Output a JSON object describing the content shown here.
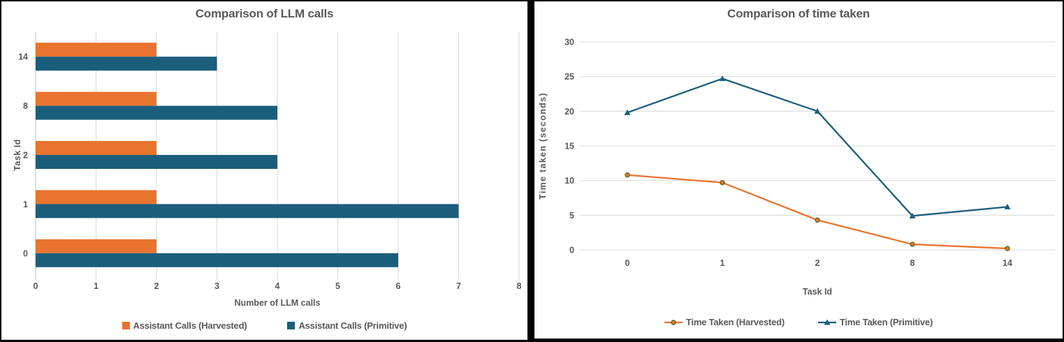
{
  "left_panel": {
    "title": "Comparison of LLM calls"
  },
  "right_panel": {
    "title": "Comparison of time taken"
  },
  "colors": {
    "harvested_orange": "#E8742F",
    "primitive_blue": "#1B5E7C",
    "text_gray": "#595959",
    "gridline_gray": "#D9D9D9",
    "axis_gray": "#BFBFBF",
    "marker_ring_olive": "#5A6B1E",
    "frame_black": "#000000",
    "background_white": "#FFFFFF"
  },
  "chart_data": [
    {
      "type": "bar",
      "orientation": "horizontal",
      "title": "Comparison of LLM calls",
      "categories": [
        "0",
        "1",
        "2",
        "8",
        "14"
      ],
      "series": [
        {
          "name": "Assistant Calls (Harvested)",
          "color": "#E8742F",
          "values": [
            2,
            2,
            2,
            2,
            2
          ]
        },
        {
          "name": "Assistant Calls (Primitive)",
          "color": "#1B5E7C",
          "values": [
            6,
            7,
            4,
            4,
            3
          ]
        }
      ],
      "xlabel": "Number of LLM calls",
      "ylabel": "Task Id",
      "xlim": [
        0,
        8
      ],
      "xticks": [
        0,
        1,
        2,
        3,
        4,
        5,
        6,
        7,
        8
      ],
      "grid": "vertical-only",
      "legend_position": "bottom"
    },
    {
      "type": "line",
      "title": "Comparison of time taken",
      "categories": [
        "0",
        "1",
        "2",
        "8",
        "14"
      ],
      "series": [
        {
          "name": "Time Taken (Harvested)",
          "color": "#E8742F",
          "marker": "circle",
          "marker_ring": "#5A6B1E",
          "values": [
            10.8,
            9.7,
            4.3,
            0.8,
            0.2
          ]
        },
        {
          "name": "Time Taken (Primitive)",
          "color": "#1B5E7C",
          "marker": "triangle",
          "values": [
            19.8,
            24.7,
            20.0,
            4.9,
            6.2
          ]
        }
      ],
      "xlabel": "Task Id",
      "ylabel": "Time taken (seconds)",
      "ylim": [
        0,
        30
      ],
      "yticks": [
        0,
        5,
        10,
        15,
        20,
        25,
        30
      ],
      "grid": "horizontal-only",
      "legend_position": "bottom"
    }
  ]
}
